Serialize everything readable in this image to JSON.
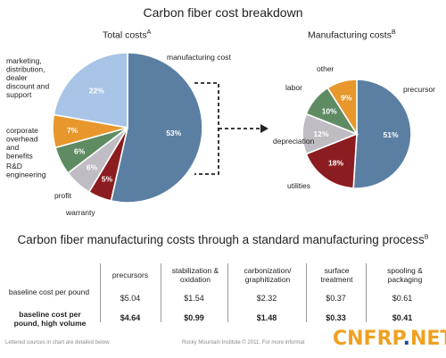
{
  "chart_title": "Carbon fiber cost breakdown",
  "chart_data": [
    {
      "type": "pie",
      "title": "Total costs",
      "title_superscript": "A",
      "slices": [
        {
          "label": "manufacturing cost",
          "value": 53,
          "value_label": "53%",
          "color": "#5a7fa3"
        },
        {
          "label": "warranty",
          "value": 5,
          "value_label": "5%",
          "color": "#8b1c1f"
        },
        {
          "label": "profit",
          "value": 6,
          "value_label": "6%",
          "color": "#bfbcc4"
        },
        {
          "label": "R&D engineering",
          "value": 6,
          "value_label": "6%",
          "color": "#5f8b62"
        },
        {
          "label": "corporate overhead and benefits",
          "value": 7,
          "value_label": "7%",
          "color": "#e8972c"
        },
        {
          "label": "marketing, distribution, dealer discount and support",
          "value": 22,
          "value_label": "22%",
          "color": "#a8c4e6"
        }
      ]
    },
    {
      "type": "pie",
      "title": "Manufacturing costs",
      "title_superscript": "B",
      "slices": [
        {
          "label": "precursor",
          "value": 51,
          "value_label": "51%",
          "color": "#5a7fa3"
        },
        {
          "label": "utilities",
          "value": 18,
          "value_label": "18%",
          "color": "#8b1c1f"
        },
        {
          "label": "depreciation",
          "value": 12,
          "value_label": "12%",
          "color": "#bfbcc4"
        },
        {
          "label": "labor",
          "value": 10,
          "value_label": "10%",
          "color": "#5f8b62"
        },
        {
          "label": "other",
          "value": 9,
          "value_label": "9%",
          "color": "#e8972c"
        }
      ]
    },
    {
      "type": "table",
      "title": "Carbon fiber manufacturing costs through a standard manufacturing process",
      "title_superscript": "B",
      "columns": [
        "precursors",
        "stabilization & oxidation",
        "carbonization/ graphitization",
        "surface treatment",
        "spooling & packaging"
      ],
      "rows": [
        {
          "label": "baseline cost per pound",
          "values": [
            "$5.04",
            "$1.54",
            "$2.32",
            "$0.37",
            "$0.61"
          ]
        },
        {
          "label": "baseline cost per pound, high volume",
          "values": [
            "$4.64",
            "$0.99",
            "$1.48",
            "$0.33",
            "$0.41"
          ]
        }
      ]
    }
  ],
  "footer": {
    "note": "Lettered sources in chart are detailed below.",
    "credit": "Rocky Mountain Institute © 2011. For more informat"
  },
  "watermark": {
    "left": "CNFRP",
    "dot": ".",
    "right": "NET"
  }
}
